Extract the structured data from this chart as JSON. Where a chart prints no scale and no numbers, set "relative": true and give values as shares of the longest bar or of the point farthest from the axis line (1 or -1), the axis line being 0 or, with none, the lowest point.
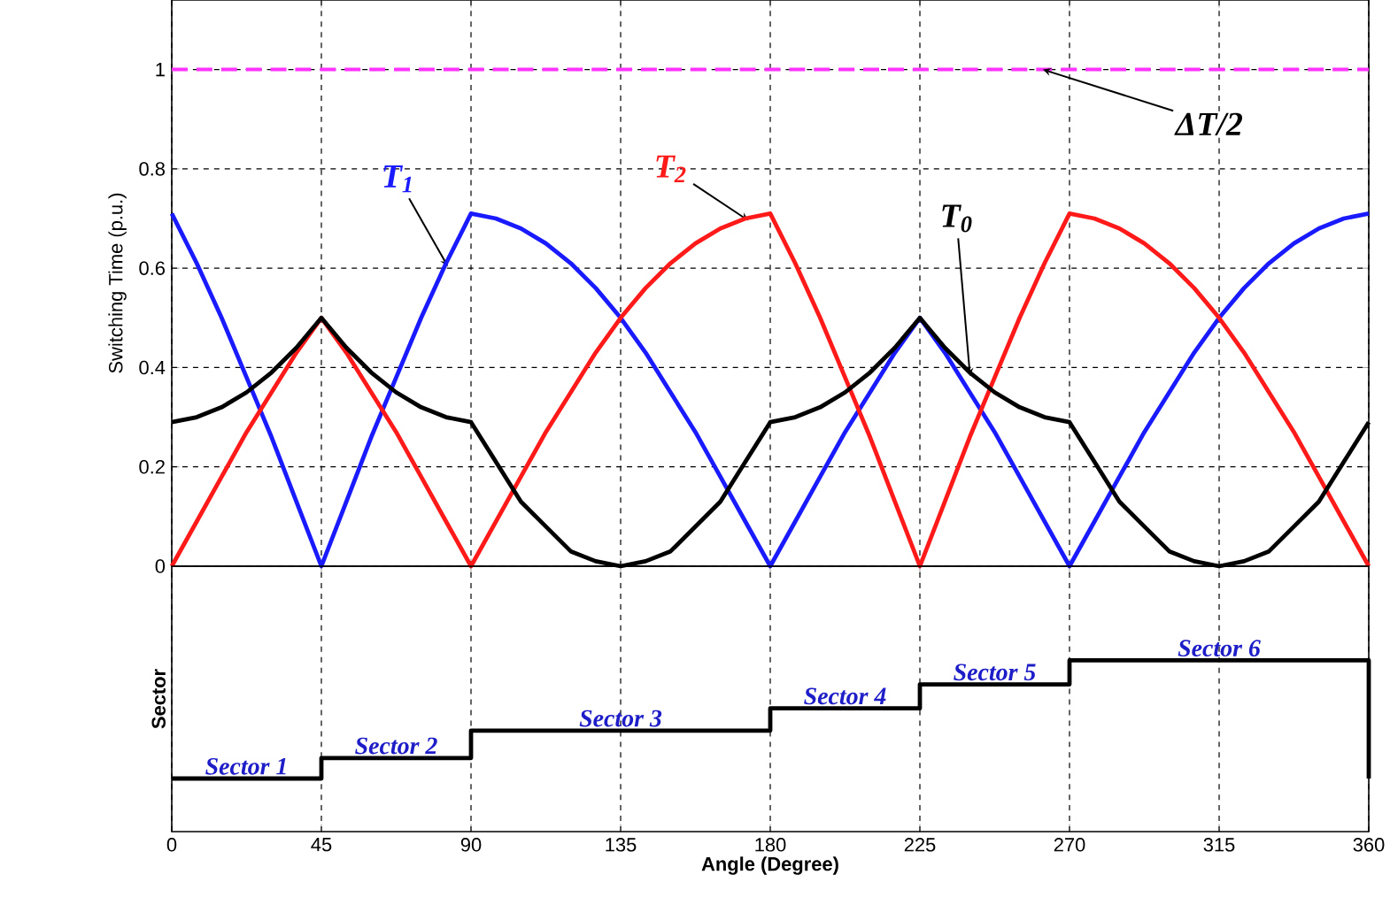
{
  "chart_data": [
    {
      "type": "line",
      "ylabel": "Switching Time (p.u.)",
      "x": [
        0,
        7.5,
        15,
        22.5,
        30,
        37.5,
        45,
        52.5,
        60,
        67.5,
        75,
        82.5,
        90,
        97.5,
        105,
        112.5,
        120,
        127.5,
        135,
        142.5,
        150,
        157.5,
        165,
        172.5,
        180,
        187.5,
        195,
        202.5,
        210,
        217.5,
        225,
        232.5,
        240,
        247.5,
        255,
        262.5,
        270,
        277.5,
        285,
        292.5,
        300,
        307.5,
        315,
        322.5,
        330,
        337.5,
        345,
        352.5,
        360
      ],
      "series": [
        {
          "name": "*T*$_{1}$",
          "color": "#1a1aff",
          "values": [
            0.71,
            0.61,
            0.5,
            0.38,
            0.26,
            0.13,
            0,
            0.13,
            0.26,
            0.38,
            0.5,
            0.61,
            0.71,
            0.7,
            0.68,
            0.65,
            0.61,
            0.56,
            0.5,
            0.43,
            0.35,
            0.27,
            0.18,
            0.09,
            0,
            0.09,
            0.18,
            0.27,
            0.35,
            0.43,
            0.5,
            0.43,
            0.35,
            0.27,
            0.18,
            0.09,
            0,
            0.09,
            0.18,
            0.27,
            0.35,
            0.43,
            0.5,
            0.56,
            0.61,
            0.65,
            0.68,
            0.7,
            0.71
          ]
        },
        {
          "name": "*T*$_{2}$",
          "color": "#ff1a1a",
          "values": [
            0,
            0.09,
            0.18,
            0.27,
            0.35,
            0.43,
            0.5,
            0.43,
            0.35,
            0.27,
            0.18,
            0.09,
            0,
            0.09,
            0.18,
            0.27,
            0.35,
            0.43,
            0.5,
            0.56,
            0.61,
            0.65,
            0.68,
            0.7,
            0.71,
            0.61,
            0.5,
            0.38,
            0.26,
            0.13,
            0,
            0.13,
            0.26,
            0.38,
            0.5,
            0.61,
            0.71,
            0.7,
            0.68,
            0.65,
            0.61,
            0.56,
            0.5,
            0.43,
            0.35,
            0.27,
            0.18,
            0.09,
            0
          ]
        },
        {
          "name": "*T*$_{0}$",
          "color": "#000000",
          "values": [
            0.29,
            0.3,
            0.32,
            0.35,
            0.39,
            0.44,
            0.5,
            0.44,
            0.39,
            0.35,
            0.32,
            0.3,
            0.29,
            0.21,
            0.13,
            0.08,
            0.03,
            0.01,
            0,
            0.01,
            0.03,
            0.08,
            0.13,
            0.21,
            0.29,
            0.3,
            0.32,
            0.35,
            0.39,
            0.44,
            0.5,
            0.44,
            0.39,
            0.35,
            0.32,
            0.3,
            0.29,
            0.21,
            0.13,
            0.08,
            0.03,
            0.01,
            0,
            0.01,
            0.03,
            0.08,
            0.13,
            0.21,
            0.29
          ]
        }
      ],
      "xlim": [
        0,
        360
      ],
      "xticks": [
        0,
        45,
        90,
        135,
        180,
        225,
        270,
        315,
        360
      ],
      "ylim": [
        0,
        1.14
      ],
      "yticks": [
        0,
        0.2,
        0.4,
        0.6,
        0.8,
        1
      ],
      "ref_lines": [
        {
          "axis": "y",
          "value": 1,
          "label": "*ΔT*/2",
          "color": "#ff33ff",
          "line_style": "dashed"
        }
      ],
      "grid": true,
      "tick_labels": "y"
    },
    {
      "type": "line",
      "relative": true,
      "xlabel": "Angle (Degree)",
      "ylabel": "Sector",
      "x": [
        0,
        45,
        45,
        90,
        90,
        180,
        180,
        225,
        225,
        270,
        270,
        360,
        360
      ],
      "series": [
        {
          "color": "#000000",
          "values": [
            0.31,
            0.31,
            0.43,
            0.43,
            0.59,
            0.59,
            0.72,
            0.72,
            0.86,
            0.86,
            1,
            1,
            0.31
          ]
        }
      ],
      "xlim": [
        0,
        360
      ],
      "xticks": [
        0,
        45,
        90,
        135,
        180,
        225,
        270,
        315,
        360
      ],
      "annotations": [
        {
          "text": "Sector 1",
          "x": 22.5,
          "y": 0.31
        },
        {
          "text": "Sector 2",
          "x": 67.5,
          "y": 0.43
        },
        {
          "text": "Sector 3",
          "x": 135,
          "y": 0.59
        },
        {
          "text": "Sector 4",
          "x": 202.5,
          "y": 0.72
        },
        {
          "text": "Sector 5",
          "x": 247.5,
          "y": 0.86
        },
        {
          "text": "Sector 6",
          "x": 315,
          "y": 1
        }
      ],
      "grid": "x",
      "tick_labels": "x"
    }
  ]
}
